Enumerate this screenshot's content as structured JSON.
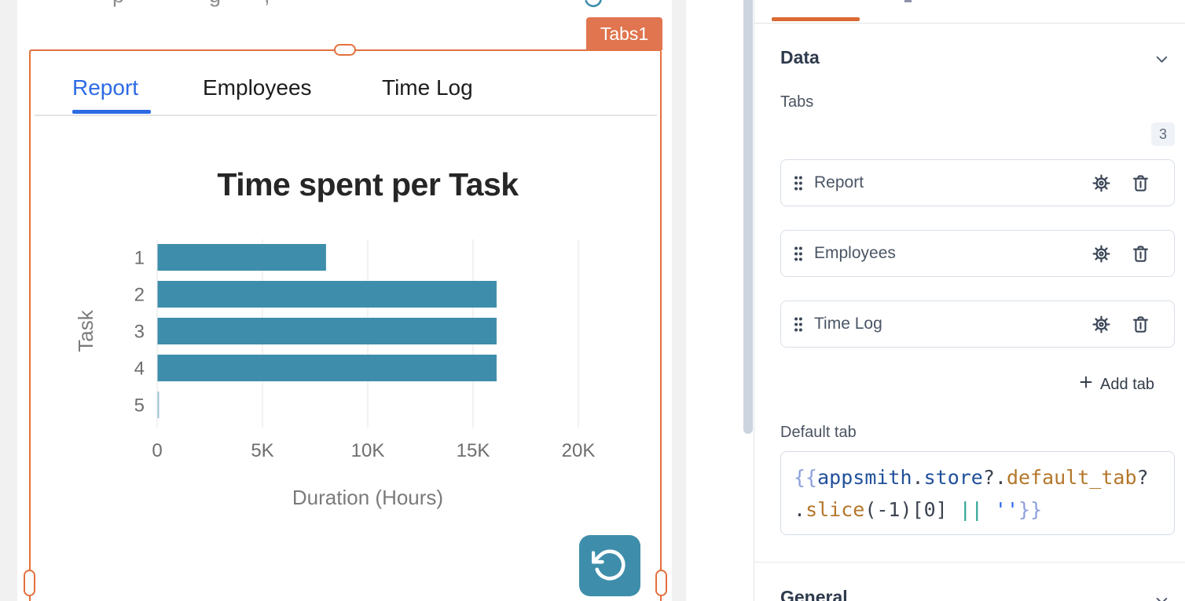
{
  "canvas": {
    "clipped_text_fragments": [
      "p",
      "g",
      ","
    ],
    "widget_name_badge": "Tabs1",
    "widget_tabs": [
      "Report",
      "Employees",
      "Time Log"
    ],
    "active_widget_tab": "Report"
  },
  "chart_data": {
    "type": "bar",
    "orientation": "horizontal",
    "title": "Time spent per Task",
    "categories": [
      "1",
      "2",
      "3",
      "4",
      "5"
    ],
    "values": [
      8000,
      16100,
      16100,
      16100,
      40
    ],
    "xlabel": "Duration (Hours)",
    "ylabel": "Task",
    "xlim": [
      0,
      20000
    ],
    "xticks": [
      0,
      5000,
      10000,
      15000,
      20000
    ],
    "xtick_labels": [
      "0",
      "5K",
      "10K",
      "15K",
      "20K"
    ],
    "grid": true,
    "legend": false,
    "bar_color": "#3E8EAB"
  },
  "property_pane": {
    "sections": {
      "data": "Data",
      "general": "General"
    },
    "tabs_field_label": "Tabs",
    "tabs_count": "3",
    "tab_items": [
      {
        "label": "Report",
        "icons": [
          "drag-handle-icon",
          "gear-icon",
          "trash-icon"
        ]
      },
      {
        "label": "Employees",
        "icons": [
          "drag-handle-icon",
          "gear-icon",
          "trash-icon"
        ]
      },
      {
        "label": "Time Log",
        "icons": [
          "drag-handle-icon",
          "gear-icon",
          "trash-icon"
        ]
      }
    ],
    "add_tab_label": "Add tab",
    "default_tab_label": "Default tab",
    "default_tab_code": {
      "text": "{{appsmith.store?.default_tab?.slice(-1)[0] || ''}}",
      "lines": [
        [
          {
            "t": "{{",
            "c": "brace"
          },
          {
            "t": "appsmith",
            "c": "var"
          },
          {
            "t": ".",
            "c": "op"
          },
          {
            "t": "store",
            "c": "var"
          },
          {
            "t": "?.",
            "c": "op"
          },
          {
            "t": "default_tab",
            "c": "prop"
          },
          {
            "t": "?",
            "c": "op"
          }
        ],
        [
          {
            "t": ".",
            "c": "op"
          },
          {
            "t": "slice",
            "c": "prop"
          },
          {
            "t": "(-1)[0] ",
            "c": "op"
          },
          {
            "t": "||",
            "c": "logic"
          },
          {
            "t": " ",
            "c": "op"
          },
          {
            "t": "''",
            "c": "str"
          },
          {
            "t": "}}",
            "c": "brace"
          }
        ]
      ]
    }
  },
  "colors": {
    "selection_orange": "#E4703C",
    "badge_orange": "#E0754F",
    "pane_tab_underline_orange": "#D96B33",
    "chart_bar_teal": "#3E8EAB",
    "active_tab_blue": "#2D6BE4"
  }
}
